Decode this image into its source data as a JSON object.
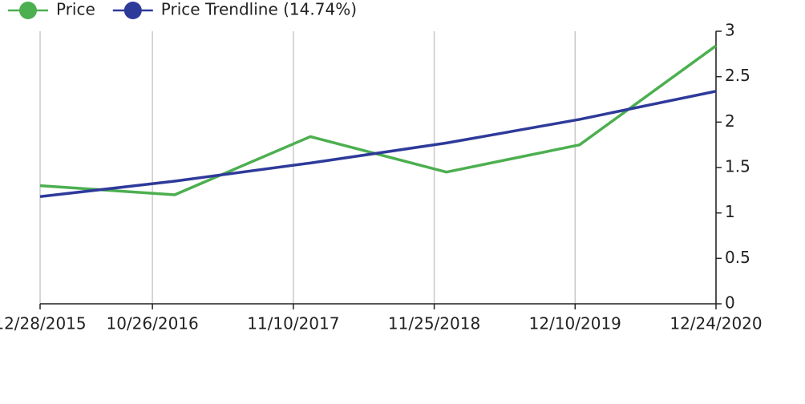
{
  "chart_data": {
    "type": "line",
    "x": [
      "12/28/2015",
      "12/25/2016",
      "12/26/2017",
      "12/28/2018",
      "12/22/2019",
      "12/24/2020"
    ],
    "xlim": [
      "12/28/2015",
      "12/24/2020"
    ],
    "xticks": [
      "12/28/2015",
      "10/26/2016",
      "11/10/2017",
      "11/25/2018",
      "12/10/2019",
      "12/24/2020"
    ],
    "series": [
      {
        "name": "Price",
        "color": "#4caf50",
        "values": [
          1.3,
          1.2,
          1.84,
          1.45,
          1.75,
          2.84
        ]
      },
      {
        "name": "Price Trendline (14.74%)",
        "color": "#2e3a9a",
        "values": [
          1.18,
          1.35,
          1.55,
          1.77,
          2.03,
          2.34
        ]
      }
    ],
    "ylim": [
      0,
      3
    ],
    "yticks": [
      0,
      0.5,
      1,
      1.5,
      2,
      2.5,
      3
    ],
    "grid": true,
    "legend": "top-left"
  }
}
